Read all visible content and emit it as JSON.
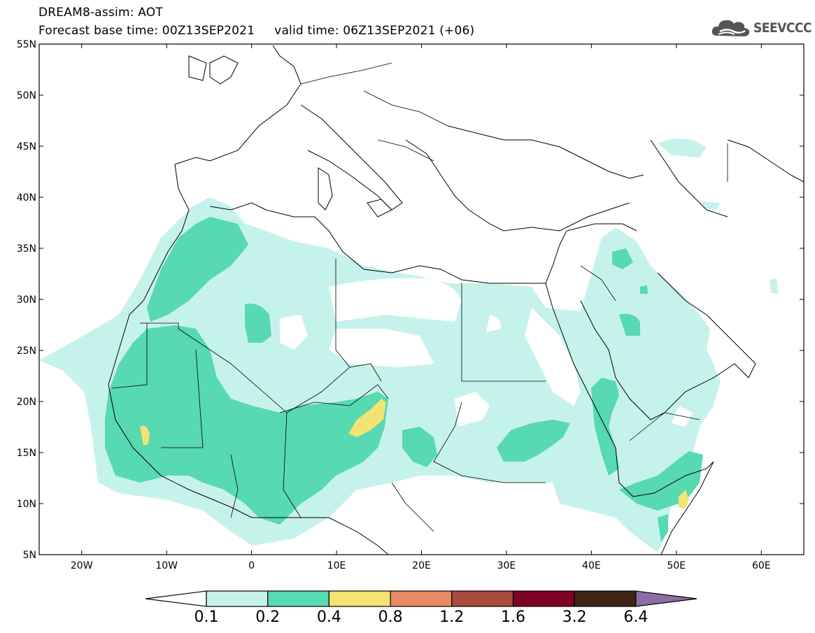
{
  "header": {
    "line1": "DREAM8-assim: AOT",
    "line2": "Forecast base time: 00Z13SEP2021     valid time: 06Z13SEP2021 (+06)"
  },
  "logo": {
    "text": "SEEVCCC",
    "icon": "cloud-logo-icon"
  },
  "map": {
    "lon_range": [
      -25,
      65
    ],
    "lat_range": [
      5,
      55
    ],
    "lon_ticks": [
      {
        "value": -20,
        "label": "20W"
      },
      {
        "value": -10,
        "label": "10W"
      },
      {
        "value": 0,
        "label": "0"
      },
      {
        "value": 10,
        "label": "10E"
      },
      {
        "value": 20,
        "label": "20E"
      },
      {
        "value": 30,
        "label": "30E"
      },
      {
        "value": 40,
        "label": "40E"
      },
      {
        "value": 50,
        "label": "50E"
      },
      {
        "value": 60,
        "label": "60E"
      }
    ],
    "lat_ticks": [
      {
        "value": 55,
        "label": "55N"
      },
      {
        "value": 50,
        "label": "50N"
      },
      {
        "value": 45,
        "label": "45N"
      },
      {
        "value": 40,
        "label": "40N"
      },
      {
        "value": 35,
        "label": "35N"
      },
      {
        "value": 30,
        "label": "30N"
      },
      {
        "value": 25,
        "label": "25N"
      },
      {
        "value": 20,
        "label": "20N"
      },
      {
        "value": 15,
        "label": "15N"
      },
      {
        "value": 10,
        "label": "10N"
      },
      {
        "value": 5,
        "label": "5N"
      }
    ]
  },
  "colorbar": {
    "colors": {
      "below": "#ffffff",
      "c1": "#c6f2ec",
      "c2": "#57d9b1",
      "c3": "#f2e372",
      "c4": "#e88b64",
      "c5": "#a94a3c",
      "c6": "#7d0025",
      "c7": "#3f2514",
      "above": "#8c6fa6"
    },
    "labels": [
      "0.1",
      "0.2",
      "0.4",
      "0.8",
      "1.2",
      "1.6",
      "3.2",
      "6.4"
    ]
  }
}
